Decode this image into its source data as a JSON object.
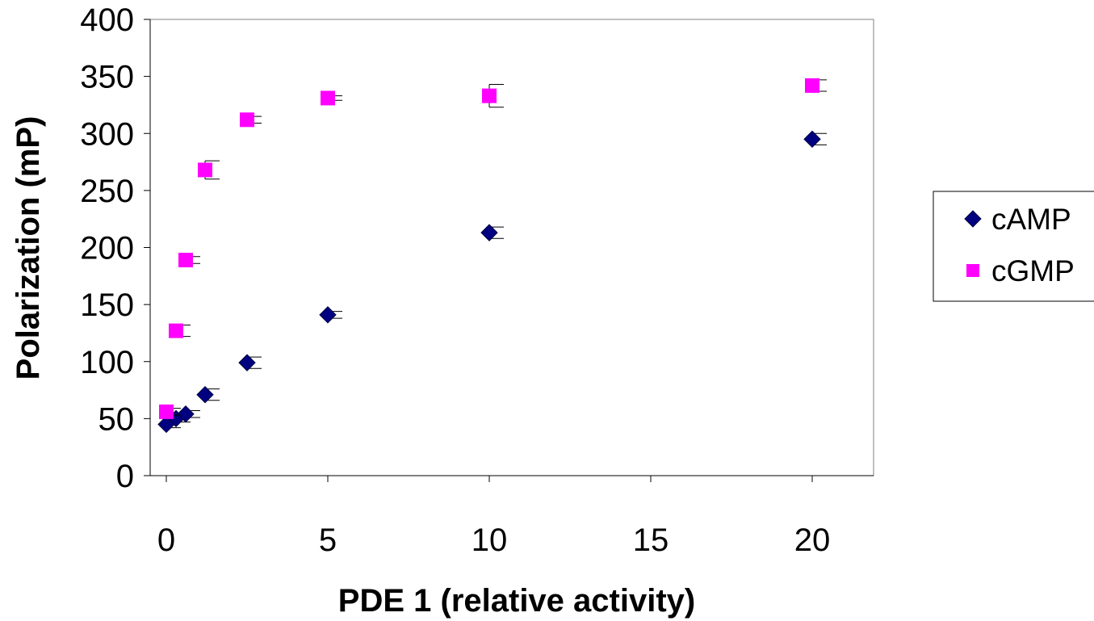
{
  "chart_data": {
    "type": "scatter",
    "title": "",
    "xlabel": "PDE 1 (relative activity)",
    "ylabel": "Polarization (mP)",
    "xlim": [
      0,
      22
    ],
    "ylim": [
      0,
      400
    ],
    "x_ticks": [
      0,
      5,
      10,
      15,
      20
    ],
    "y_ticks": [
      0,
      50,
      100,
      150,
      200,
      250,
      300,
      350,
      400
    ],
    "grid": false,
    "legend_position": "right",
    "series": [
      {
        "name": "cAMP",
        "marker": "diamond",
        "color": "#000080",
        "points": [
          {
            "x": 0,
            "y": 45,
            "err": 3
          },
          {
            "x": 0.3,
            "y": 50,
            "err": 3
          },
          {
            "x": 0.6,
            "y": 54,
            "err": 3
          },
          {
            "x": 1.2,
            "y": 71,
            "err": 5
          },
          {
            "x": 2.5,
            "y": 99,
            "err": 5
          },
          {
            "x": 5,
            "y": 141,
            "err": 3
          },
          {
            "x": 10,
            "y": 213,
            "err": 5
          },
          {
            "x": 20,
            "y": 295,
            "err": 5
          }
        ]
      },
      {
        "name": "cGMP",
        "marker": "square",
        "color": "#ff00ff",
        "points": [
          {
            "x": 0,
            "y": 56,
            "err": 3
          },
          {
            "x": 0.3,
            "y": 127,
            "err": 5
          },
          {
            "x": 0.6,
            "y": 189,
            "err": 3
          },
          {
            "x": 1.2,
            "y": 268,
            "err": 8
          },
          {
            "x": 2.5,
            "y": 312,
            "err": 3
          },
          {
            "x": 5,
            "y": 331,
            "err": 2
          },
          {
            "x": 10,
            "y": 333,
            "err": 10
          },
          {
            "x": 20,
            "y": 342,
            "err": 5
          }
        ]
      }
    ]
  }
}
